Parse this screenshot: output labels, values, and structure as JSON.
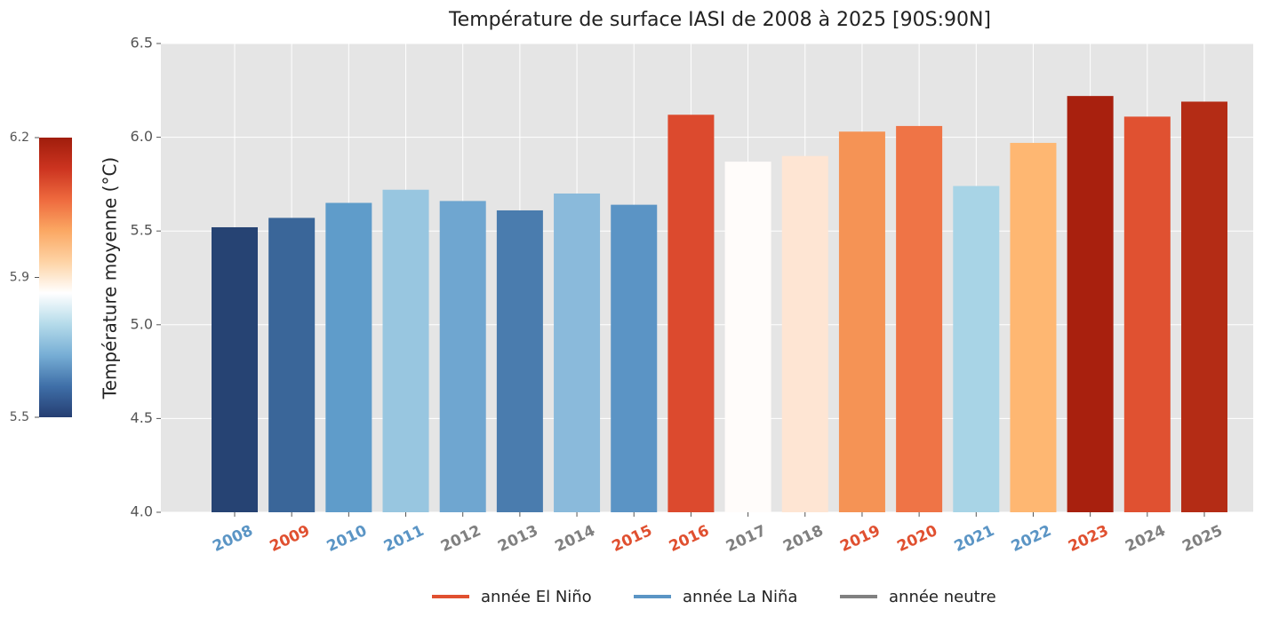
{
  "chart_data": {
    "type": "bar",
    "title": "Température de surface IASI de 2008 à 2025 [90S:90N]",
    "y_label": "Température moyenne (°C)",
    "categories": [
      "2008",
      "2009",
      "2010",
      "2011",
      "2012",
      "2013",
      "2014",
      "2015",
      "2016",
      "2017",
      "2018",
      "2019",
      "2020",
      "2021",
      "2022",
      "2023",
      "2024",
      "2025"
    ],
    "values": [
      5.52,
      5.57,
      5.65,
      5.72,
      5.66,
      5.61,
      5.7,
      5.64,
      6.12,
      5.87,
      5.9,
      6.03,
      6.06,
      5.74,
      5.97,
      6.22,
      6.11,
      6.19
    ],
    "colors": [
      "#264373",
      "#3a6699",
      "#5f9cca",
      "#98c6e0",
      "#6fa6d0",
      "#4a7cae",
      "#8abadb",
      "#5b94c5",
      "#dc4a2e",
      "#fffcfa",
      "#fee5d3",
      "#f59355",
      "#ef7446",
      "#a8d4e6",
      "#feb772",
      "#a8200e",
      "#e05131",
      "#b42c15"
    ],
    "label_colors": [
      "#5b95c5",
      "#e05030",
      "#5b95c5",
      "#5b95c5",
      "#808080",
      "#808080",
      "#808080",
      "#e05030",
      "#e05030",
      "#808080",
      "#808080",
      "#e05030",
      "#e05030",
      "#5b95c5",
      "#5b95c5",
      "#e05030",
      "#808080",
      "#808080"
    ],
    "ylim": [
      4.0,
      6.5
    ],
    "yticks": [
      {
        "value": 4.0,
        "label": "4.0"
      },
      4.5,
      {
        "value": 5.0,
        "label": "5.0"
      },
      5.5,
      {
        "value": 6.0,
        "label": "6.0"
      },
      6.5
    ],
    "grid": true,
    "legend": [
      {
        "name": "année El Niño",
        "color": "#e05030"
      },
      {
        "name": "année La Niña",
        "color": "#5b95c5"
      },
      {
        "name": "année neutre",
        "color": "#808080"
      }
    ],
    "legend_position": "bottom",
    "colorbar": {
      "lim": [
        5.52,
        6.22
      ],
      "center": 5.87,
      "ticks": [
        {
          "value": 5.52,
          "label": "5.5"
        },
        {
          "value": 5.87,
          "label": "5.9"
        },
        {
          "value": 6.22,
          "label": "6.2"
        }
      ],
      "colors": [
        "#253e72",
        "#3f6fa8",
        "#77aed5",
        "#b5dbea",
        "#ffffff",
        "#fed3a5",
        "#fba863",
        "#ee6a3e",
        "#cc3420",
        "#a01d0c"
      ]
    }
  }
}
